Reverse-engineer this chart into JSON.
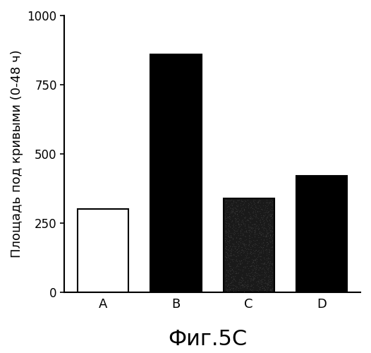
{
  "categories": [
    "A",
    "B",
    "C",
    "D"
  ],
  "values": [
    300,
    860,
    340,
    420
  ],
  "bar_colors": [
    "#ffffff",
    "#000000",
    "#1a1a1a",
    "#000000"
  ],
  "bar_edgecolors": [
    "#000000",
    "#000000",
    "#000000",
    "#000000"
  ],
  "title": "",
  "ylabel": "Площадь под кривыми (0-48 ч)",
  "xlabel_fig": "Фиг.5С",
  "ylim": [
    0,
    1000
  ],
  "yticks": [
    0,
    250,
    500,
    750,
    1000
  ],
  "background_color": "#ffffff",
  "bar_width": 0.7,
  "ylabel_fontsize": 13,
  "xlabel_fig_fontsize": 22,
  "tick_fontsize": 12,
  "xtick_fontsize": 13
}
